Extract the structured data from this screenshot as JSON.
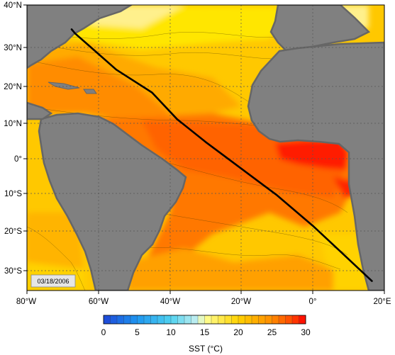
{
  "map": {
    "date_stamp": "03/18/2006",
    "colors": {
      "land": "#808080",
      "coast_shelf": "#666666",
      "track": "#000000",
      "grid": "#555555"
    },
    "lon_ticks": [
      "80°W",
      "60°W",
      "40°W",
      "20°W",
      "0°",
      "20°E"
    ],
    "lat_ticks": [
      "40°N",
      "30°N",
      "20°N",
      "10°N",
      "0°",
      "10°S",
      "20°S",
      "30°S"
    ],
    "extent": {
      "lon": [
        -80,
        20
      ],
      "lat": [
        -35,
        40
      ]
    },
    "track": {
      "label": "",
      "points": [
        [
          -67.5,
          33.6
        ],
        [
          -66.5,
          32.5
        ],
        [
          -55,
          23
        ],
        [
          -45,
          17
        ],
        [
          -38,
          10
        ],
        [
          -30,
          4
        ],
        [
          -20,
          -3
        ],
        [
          -10,
          -10
        ],
        [
          0,
          -18
        ],
        [
          8,
          -25
        ],
        [
          16.5,
          -32.5
        ]
      ]
    }
  },
  "colorbar": {
    "title": "SST (°C)",
    "ticks": [
      "0",
      "5",
      "10",
      "15",
      "20",
      "25",
      "30"
    ],
    "range": [
      0,
      30
    ],
    "stops": [
      {
        "v": 0,
        "c": "#1e46d8"
      },
      {
        "v": 5,
        "c": "#1e96f0"
      },
      {
        "v": 10,
        "c": "#50d2f0"
      },
      {
        "v": 14,
        "c": "#c8f0f0"
      },
      {
        "v": 15,
        "c": "#ffff96"
      },
      {
        "v": 20,
        "c": "#ffd200"
      },
      {
        "v": 25,
        "c": "#ff8c00"
      },
      {
        "v": 28,
        "c": "#ff4600"
      },
      {
        "v": 30,
        "c": "#ff0000"
      }
    ]
  }
}
